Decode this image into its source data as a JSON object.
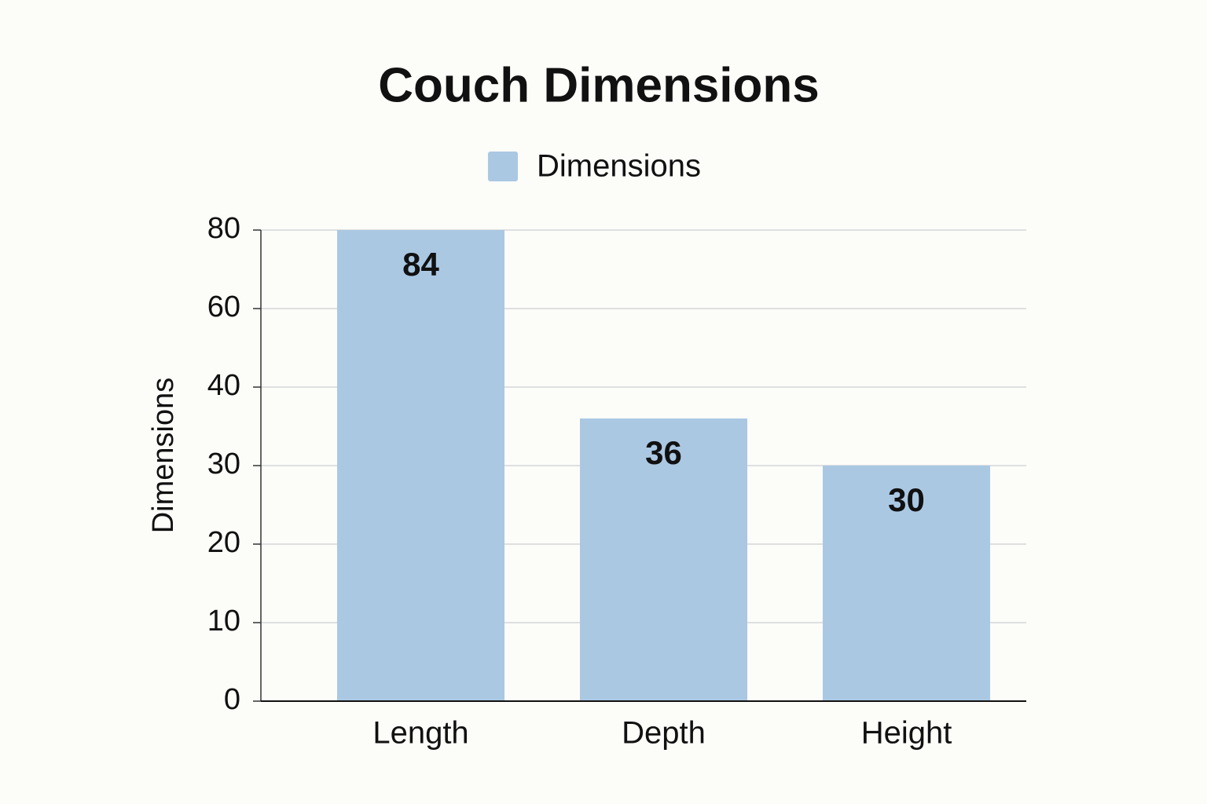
{
  "chart_data": {
    "type": "bar",
    "title": "Couch Dimensions",
    "legend": "Dimensions",
    "y_label": "Dimensions",
    "categories": [
      "Length",
      "Depth",
      "Height"
    ],
    "values": [
      84,
      36,
      30
    ],
    "color": "#abc8e3",
    "ylim": [
      0,
      80
    ],
    "yticks": [
      0,
      10,
      20,
      30,
      40,
      60,
      80
    ],
    "grid": true,
    "legend_position": "top"
  }
}
